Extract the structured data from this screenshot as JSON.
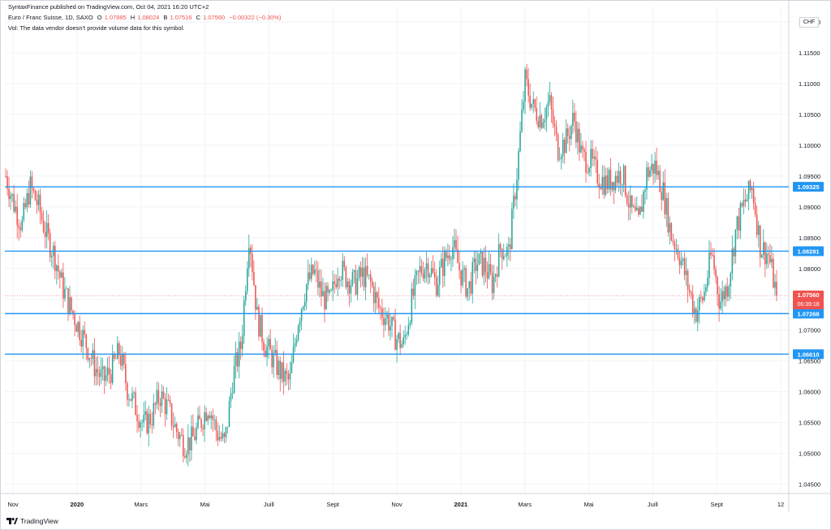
{
  "header": {
    "publisher": "SyntaxFinance published on TradingView.com, Oct 04, 2021 16:20 UTC+2",
    "symbol": "Euro / Franc Suisse, 1D, SAXO",
    "ohlc": {
      "open_label": "O",
      "open": "1.07885",
      "high_label": "H",
      "high": "1.08024",
      "low_label": "B",
      "low": "1.07516",
      "close_label": "C",
      "close": "1.07560",
      "change": "−0.00322 (−0.30%)"
    },
    "volume_note": "Vol: The data vendor doesn't provide volume data for this symbol."
  },
  "currency": "CHF",
  "last_price": {
    "label": "1.07560",
    "value": 1.0756,
    "countdown": "06:39:18"
  },
  "footer": {
    "brand": "TradingView"
  },
  "colors": {
    "up": "#26a69a",
    "down": "#ef5350",
    "hline": "#2196f3",
    "grid": "#f0f3fa"
  },
  "chart_data": {
    "type": "candlestick",
    "y_axis": {
      "ticks": [
        "1.12000",
        "1.11500",
        "1.11000",
        "1.10500",
        "1.10000",
        "1.09500",
        "1.09000",
        "1.08500",
        "1.08000",
        "1.07500",
        "1.07000",
        "1.06500",
        "1.06000",
        "1.05500",
        "1.05000",
        "1.04500"
      ],
      "ylim": [
        1.0435,
        1.1225
      ]
    },
    "x_axis": {
      "ticks": [
        {
          "label": "Nov",
          "bold": false
        },
        {
          "label": "2020",
          "bold": true
        },
        {
          "label": "Mars",
          "bold": false
        },
        {
          "label": "Mai",
          "bold": false
        },
        {
          "label": "Juill",
          "bold": false
        },
        {
          "label": "Sept",
          "bold": false
        },
        {
          "label": "Nov",
          "bold": false
        },
        {
          "label": "2021",
          "bold": true
        },
        {
          "label": "Mars",
          "bold": false
        },
        {
          "label": "Mai",
          "bold": false
        },
        {
          "label": "Juill",
          "bold": false
        },
        {
          "label": "Sept",
          "bold": false
        },
        {
          "label": "12",
          "bold": false
        }
      ]
    },
    "horizontal_lines": [
      {
        "value": 1.09325,
        "label": "1.09325"
      },
      {
        "value": 1.08281,
        "label": "1.08281"
      },
      {
        "value": 1.07268,
        "label": "1.07268"
      },
      {
        "value": 1.0661,
        "label": "1.06610"
      }
    ],
    "close_path": [
      1.095,
      1.0905,
      1.087,
      1.0933,
      1.0902,
      1.0855,
      1.0822,
      1.077,
      1.0735,
      1.0705,
      1.0675,
      1.064,
      1.0618,
      1.0635,
      1.0665,
      1.0605,
      1.0575,
      1.0545,
      1.056,
      1.0595,
      1.0572,
      1.0538,
      1.0515,
      1.0522,
      1.055,
      1.058,
      1.0535,
      1.0515,
      1.0625,
      1.0675,
      1.086,
      1.072,
      1.0675,
      1.0652,
      1.0628,
      1.0615,
      1.0715,
      1.0772,
      1.0795,
      1.0755,
      1.0745,
      1.0805,
      1.0785,
      1.0775,
      1.079,
      1.0775,
      1.0735,
      1.072,
      1.069,
      1.0675,
      1.0745,
      1.0795,
      1.081,
      1.0775,
      1.081,
      1.084,
      1.0795,
      1.0765,
      1.081,
      1.0805,
      1.0775,
      1.0835,
      1.0825,
      1.0955,
      1.1105,
      1.106,
      1.1045,
      1.107,
      1.0995,
      1.1005,
      1.1045,
      1.098,
      1.0975,
      1.095,
      1.0938,
      1.0948,
      1.0955,
      1.0895,
      1.0872,
      1.0955,
      1.0967,
      1.0925,
      1.0855,
      1.0825,
      1.0775,
      1.0728,
      1.0755,
      1.0825,
      1.0745,
      1.0775,
      1.0865,
      1.0905,
      1.0932,
      1.0835,
      1.0822,
      1.0756
    ]
  }
}
